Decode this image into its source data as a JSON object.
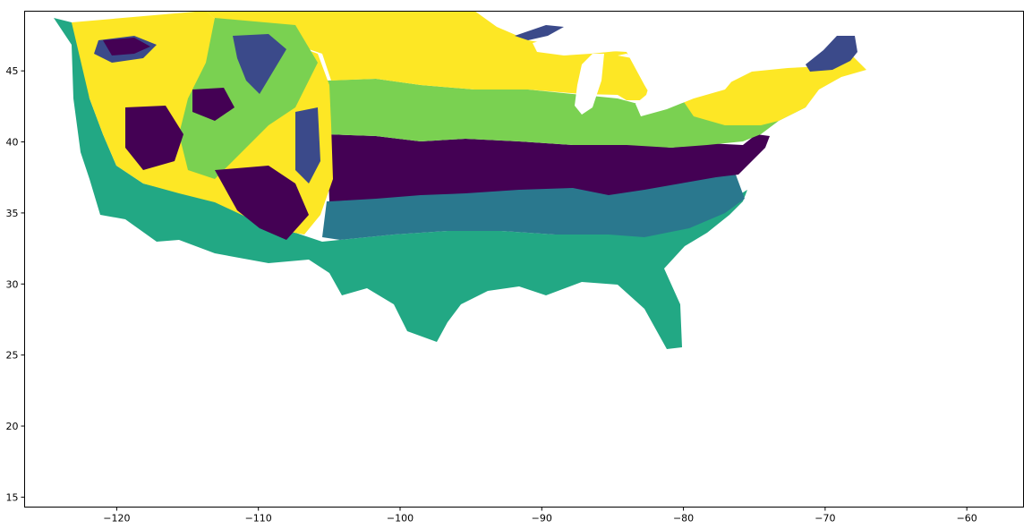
{
  "chart_data": {
    "type": "heatmap",
    "title": "",
    "xlabel": "",
    "ylabel": "",
    "xlim": [
      -126.5,
      -56
    ],
    "ylim": [
      14.3,
      49.2
    ],
    "x_ticks": [
      -120,
      -110,
      -100,
      -90,
      -80,
      -70,
      -60
    ],
    "x_tick_labels": [
      "−120",
      "−110",
      "−100",
      "−90",
      "−80",
      "−70",
      "−60"
    ],
    "y_ticks": [
      15,
      20,
      25,
      30,
      35,
      40,
      45
    ],
    "y_tick_labels": [
      "15",
      "20",
      "25",
      "30",
      "35",
      "40",
      "45"
    ],
    "grid": false,
    "legend": "none",
    "colors": {
      "class_0": "#440154",
      "class_1": "#3b4a8a",
      "class_2": "#2a788e",
      "class_3": "#22a884",
      "class_4": "#7ad151",
      "class_5": "#fde725",
      "background": "#ffffff",
      "axis": "#000000"
    }
  }
}
